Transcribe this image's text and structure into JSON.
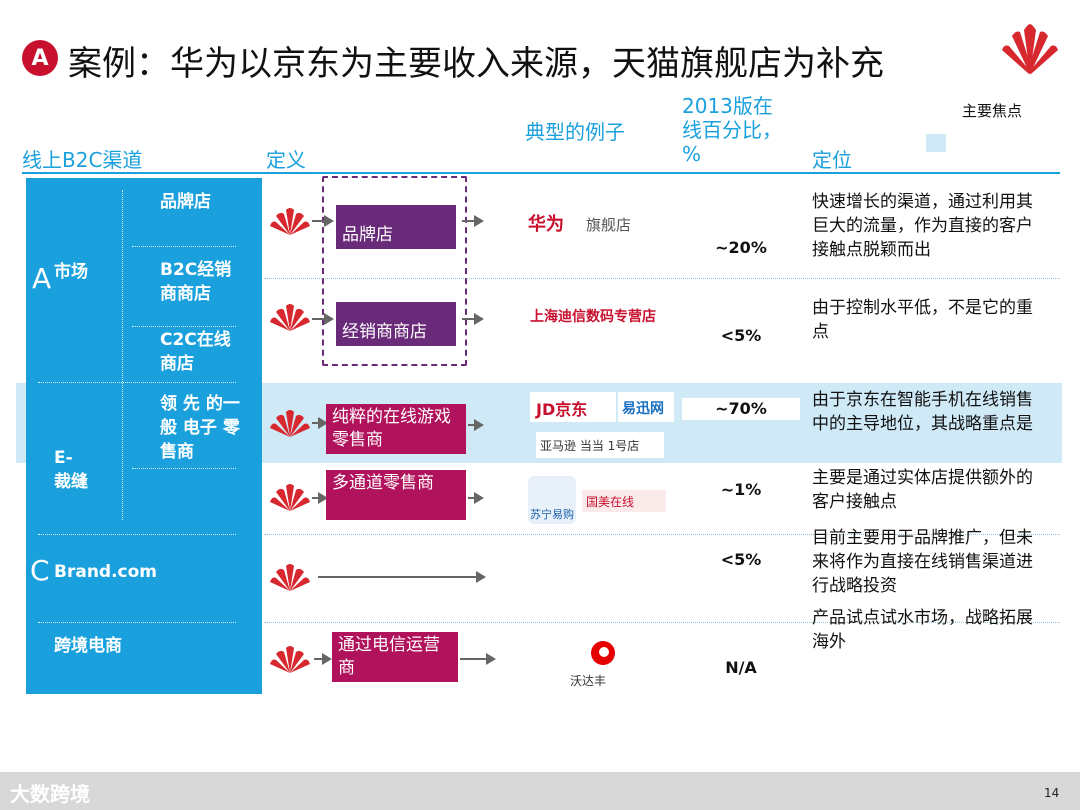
{
  "title": {
    "badge": "A",
    "text": "案例：华为以京东为主要收入来源，天猫旗舰店为补充"
  },
  "headers": {
    "channel": "线上B2C渠道",
    "definition": "定义",
    "examples": "典型的例子",
    "pct": "2013版在线百分比，%",
    "positioning": "定位",
    "focus_legend": "主要焦点"
  },
  "left": {
    "group_a_letter": "A",
    "group_a": "市场",
    "sub_brand_store": "品牌店",
    "sub_b2c": "B2C经销商商店",
    "sub_c2c": "C2C在线商店",
    "group_e": "E-\n裁缝",
    "sub_general": "领 先 的一般 电子 零售商",
    "group_c_letter": "C",
    "group_c": "Brand.com",
    "group_cross": "跨境电商"
  },
  "rows": [
    {
      "box": "品牌店",
      "example_logo": "华为",
      "example_logo_sub": "旗舰店",
      "pct": "~20%",
      "pos": "快速增长的渠道，通过利用其巨大的流量，作为直接的客户接触点脱颖而出"
    },
    {
      "box": "经销商商店",
      "example_logo": "上海迪信数码专营店",
      "pct": "<5%",
      "pos": "由于控制水平低，不是它的重点"
    },
    {
      "box": "纯粹的在线游戏零售商",
      "example_logo": "JD京东",
      "example_logo2": "易迅网",
      "example_logo3": "亚马逊 当当 1号店",
      "pct": "~70%",
      "pos": "由于京东在智能手机在线销售中的主导地位，其战略重点是"
    },
    {
      "box": "多通道零售商",
      "example_logo": "苏宁易购",
      "example_logo2": "国美在线",
      "pct": "~1%",
      "pos": "主要是通过实体店提供额外的客户接触点"
    },
    {
      "pct": "<5%",
      "pos": "目前主要用于品牌推广，但未来将作为直接在线销售渠道进行战略投资"
    },
    {
      "box": "通过电信运营商",
      "example_logo": "沃达丰",
      "pct": "N/A",
      "pos": "产品试点试水市场，战略拓展海外"
    }
  ],
  "footer": {
    "brand": "大数跨境",
    "page": "14"
  },
  "colors": {
    "accent": "#1aa0dc",
    "red": "#c8102e",
    "purple": "#6a2a7a",
    "magenta": "#b0125b"
  }
}
